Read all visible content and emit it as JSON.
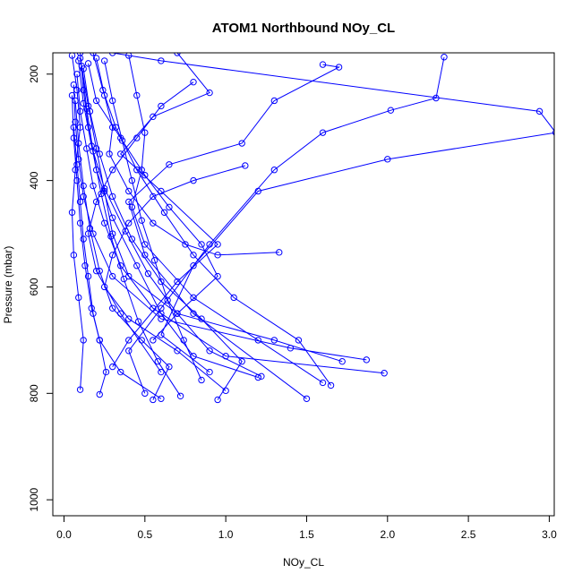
{
  "chart_data": {
    "type": "line",
    "title": "ATOM1 Northbound NOy_CL",
    "xlabel": "NOy_CL",
    "ylabel": "Pressure (mbar)",
    "xlim": [
      0,
      3.1
    ],
    "ylim": [
      1030,
      160
    ],
    "y_reversed": true,
    "xticks": [
      "0.0",
      "0.5",
      "1.0",
      "1.5",
      "2.0",
      "2.5",
      "3.0"
    ],
    "yticks": [
      "200",
      "400",
      "600",
      "800",
      "1000"
    ],
    "grid": false,
    "legend": "none",
    "marker": "open-circle",
    "color": "#0000ff",
    "series": [
      {
        "x": [
          0.1,
          0.12,
          0.15,
          0.2,
          0.3,
          0.45,
          0.6,
          0.8,
          1.2
        ],
        "y": [
          160,
          230,
          300,
          380,
          470,
          560,
          650,
          730,
          770
        ]
      },
      {
        "x": [
          2.35,
          2.3,
          2.02,
          1.6,
          1.3,
          0.9,
          0.6,
          0.4,
          0.5
        ],
        "y": [
          168,
          245,
          268,
          310,
          380,
          520,
          640,
          720,
          800
        ]
      },
      {
        "x": [
          0.3,
          0.6,
          2.94,
          3.04,
          2.0,
          1.2,
          0.8,
          0.6,
          0.9
        ],
        "y": [
          160,
          175,
          270,
          310,
          360,
          420,
          560,
          690,
          760
        ]
      },
      {
        "x": [
          0.7,
          0.9,
          0.55,
          0.35,
          0.6,
          0.95,
          0.7,
          0.4,
          0.3
        ],
        "y": [
          160,
          235,
          280,
          350,
          420,
          520,
          590,
          700,
          750
        ]
      },
      {
        "x": [
          1.6,
          1.7,
          1.3,
          1.1,
          0.65,
          0.4,
          0.5,
          0.8,
          1.5
        ],
        "y": [
          182,
          187,
          250,
          330,
          370,
          440,
          540,
          650,
          810
        ]
      },
      {
        "x": [
          1.12,
          0.8,
          0.55,
          0.4,
          0.3,
          0.25,
          0.4,
          0.7,
          1.0
        ],
        "y": [
          372,
          400,
          430,
          480,
          540,
          600,
          660,
          720,
          795
        ]
      },
      {
        "x": [
          0.8,
          0.6,
          0.45,
          0.3,
          0.2,
          0.15,
          0.2,
          0.35,
          0.6
        ],
        "y": [
          215,
          260,
          320,
          380,
          440,
          500,
          570,
          650,
          760
        ]
      },
      {
        "x": [
          0.05,
          0.08,
          0.1,
          0.07,
          0.05,
          0.06,
          0.09,
          0.12,
          0.1
        ],
        "y": [
          165,
          230,
          300,
          380,
          460,
          540,
          620,
          700,
          793
        ]
      },
      {
        "x": [
          0.2,
          0.25,
          0.3,
          0.28,
          0.4,
          0.55,
          0.75,
          0.95,
          1.33
        ],
        "y": [
          170,
          240,
          300,
          350,
          420,
          480,
          520,
          540,
          535
        ]
      },
      {
        "x": [
          0.15,
          0.2,
          0.35,
          0.5,
          0.65,
          0.85,
          0.95,
          0.7,
          0.55
        ],
        "y": [
          180,
          250,
          320,
          390,
          450,
          520,
          580,
          650,
          700
        ]
      },
      {
        "x": [
          0.08,
          0.1,
          0.14,
          0.18,
          0.25,
          0.35,
          0.55,
          1.0,
          1.98
        ],
        "y": [
          200,
          270,
          340,
          410,
          480,
          560,
          640,
          730,
          762
        ]
      },
      {
        "x": [
          0.06,
          0.07,
          0.09,
          0.12,
          0.18,
          0.3,
          0.6,
          1.4,
          1.87
        ],
        "y": [
          220,
          290,
          360,
          430,
          500,
          580,
          660,
          715,
          737
        ]
      },
      {
        "x": [
          0.1,
          0.15,
          0.2,
          0.25,
          0.3,
          0.4,
          0.7,
          1.3,
          1.72
        ],
        "y": [
          170,
          260,
          340,
          420,
          500,
          580,
          650,
          700,
          740
        ]
      },
      {
        "x": [
          0.4,
          0.45,
          0.5,
          0.48,
          0.42,
          0.5,
          0.8,
          1.2,
          1.6
        ],
        "y": [
          165,
          240,
          310,
          380,
          450,
          520,
          620,
          700,
          780
        ]
      },
      {
        "x": [
          0.05,
          0.06,
          0.08,
          0.1,
          0.13,
          0.17,
          0.22,
          0.26,
          0.22
        ],
        "y": [
          240,
          320,
          400,
          480,
          560,
          640,
          700,
          760,
          802
        ]
      },
      {
        "x": [
          0.12,
          0.16,
          0.22,
          0.3,
          0.42,
          0.6,
          0.85,
          1.1,
          0.95
        ],
        "y": [
          190,
          270,
          350,
          430,
          510,
          590,
          660,
          740,
          812
        ]
      },
      {
        "x": [
          0.18,
          0.24,
          0.32,
          0.45,
          0.62,
          0.8,
          1.05,
          1.45,
          1.65
        ],
        "y": [
          160,
          230,
          300,
          380,
          460,
          540,
          620,
          700,
          785
        ]
      },
      {
        "x": [
          0.07,
          0.09,
          0.12,
          0.16,
          0.22,
          0.3,
          0.48,
          0.65,
          0.55
        ],
        "y": [
          250,
          330,
          410,
          490,
          570,
          640,
          700,
          750,
          812
        ]
      },
      {
        "x": [
          0.09,
          0.12,
          0.17,
          0.25,
          0.38,
          0.52,
          0.7,
          0.9,
          1.22
        ],
        "y": [
          175,
          255,
          335,
          415,
          495,
          575,
          650,
          720,
          768
        ]
      },
      {
        "x": [
          0.06,
          0.08,
          0.1,
          0.12,
          0.15,
          0.18,
          0.22,
          0.35,
          0.6
        ],
        "y": [
          300,
          370,
          440,
          510,
          580,
          650,
          700,
          760,
          810
        ]
      },
      {
        "x": [
          0.25,
          0.3,
          0.36,
          0.42,
          0.48,
          0.56,
          0.64,
          0.74,
          0.85
        ],
        "y": [
          175,
          250,
          325,
          400,
          475,
          550,
          625,
          700,
          775
        ]
      },
      {
        "x": [
          0.11,
          0.14,
          0.18,
          0.23,
          0.29,
          0.37,
          0.46,
          0.58,
          0.72
        ],
        "y": [
          185,
          265,
          345,
          425,
          505,
          585,
          665,
          740,
          805
        ]
      }
    ]
  }
}
